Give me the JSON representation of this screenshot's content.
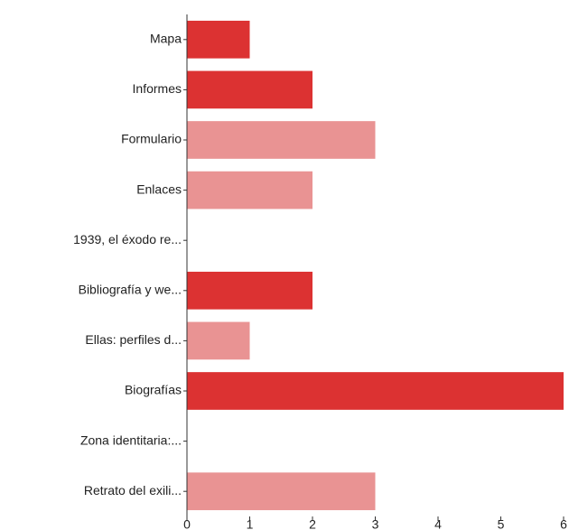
{
  "chart_data": {
    "type": "hbar",
    "categories": [
      "Mapa",
      "Informes",
      "Formulario",
      "Enlaces",
      "1939, el éxodo re...",
      "Bibliografía y we...",
      "Ellas: perfiles d...",
      "Biografías",
      "Zona identitaria:...",
      "Retrato del exili..."
    ],
    "values": [
      1,
      2,
      3,
      2,
      0,
      2,
      1,
      6,
      0,
      3
    ],
    "colors": [
      "#dc3232",
      "#dc3232",
      "#e99393",
      "#e99393",
      "#dc3232",
      "#dc3232",
      "#e99393",
      "#dc3232",
      "#dc3232",
      "#e99393"
    ],
    "xlim": [
      0,
      6
    ],
    "xticks": [
      0,
      1,
      2,
      3,
      4,
      5,
      6
    ],
    "grid": false
  }
}
